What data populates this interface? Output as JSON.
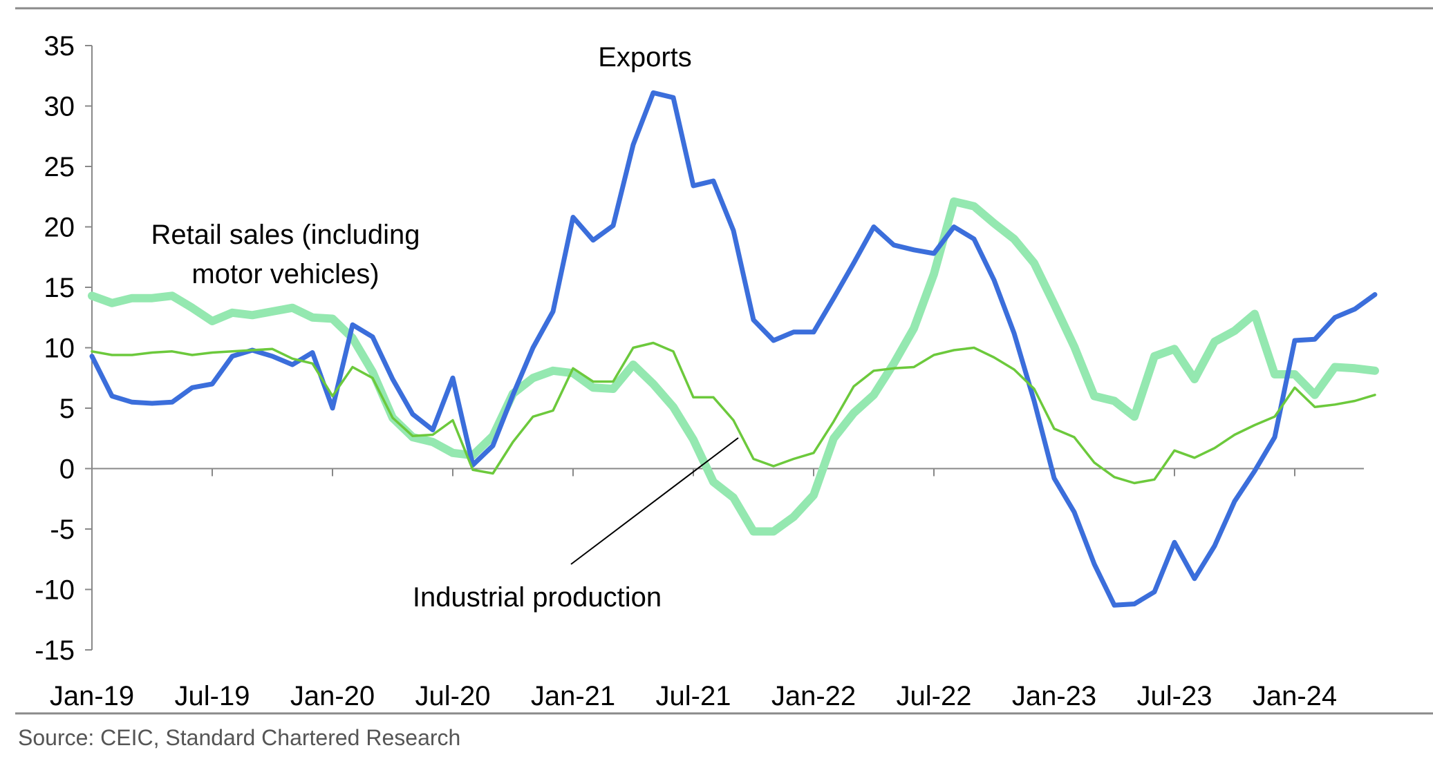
{
  "chart_data": {
    "type": "line",
    "title": "",
    "xlabel": "",
    "ylabel": "",
    "ylim": [
      -15,
      35
    ],
    "yticks": [
      -15,
      -10,
      -5,
      0,
      5,
      10,
      15,
      20,
      25,
      30,
      35
    ],
    "x_tick_labels": [
      "Jan-19",
      "Jul-19",
      "Jan-20",
      "Jul-20",
      "Jan-21",
      "Jul-21",
      "Jan-22",
      "Jul-22",
      "Jan-23",
      "Jul-23",
      "Jan-24"
    ],
    "x": [
      "Jan-19",
      "Feb-19",
      "Mar-19",
      "Apr-19",
      "May-19",
      "Jun-19",
      "Jul-19",
      "Aug-19",
      "Sep-19",
      "Oct-19",
      "Nov-19",
      "Dec-19",
      "Jan-20",
      "Feb-20",
      "Mar-20",
      "Apr-20",
      "May-20",
      "Jun-20",
      "Jul-20",
      "Aug-20",
      "Sep-20",
      "Oct-20",
      "Nov-20",
      "Dec-20",
      "Jan-21",
      "Feb-21",
      "Mar-21",
      "Apr-21",
      "May-21",
      "Jun-21",
      "Jul-21",
      "Aug-21",
      "Sep-21",
      "Oct-21",
      "Nov-21",
      "Dec-21",
      "Jan-22",
      "Feb-22",
      "Mar-22",
      "Apr-22",
      "May-22",
      "Jun-22",
      "Jul-22",
      "Aug-22",
      "Sep-22",
      "Oct-22",
      "Nov-22",
      "Dec-22",
      "Jan-23",
      "Feb-23",
      "Mar-23",
      "Apr-23",
      "May-23",
      "Jun-23",
      "Jul-23",
      "Aug-23",
      "Sep-23",
      "Oct-23",
      "Nov-23",
      "Dec-23",
      "Jan-24",
      "Feb-24",
      "Mar-24",
      "Apr-24",
      "May-24"
    ],
    "series": [
      {
        "name": "Retail sales (including motor vehicles)",
        "color": "#94e8b0",
        "values": [
          14.3,
          13.7,
          14.1,
          14.1,
          14.3,
          13.3,
          12.2,
          12.9,
          12.7,
          13.0,
          13.3,
          12.5,
          12.4,
          10.8,
          8.0,
          4.2,
          2.6,
          2.2,
          1.3,
          1.1,
          2.7,
          6.2,
          7.5,
          8.1,
          7.9,
          6.7,
          6.6,
          8.6,
          7.0,
          5.1,
          2.4,
          -1.1,
          -2.4,
          -5.2,
          -5.2,
          -4.0,
          -2.2,
          2.5,
          4.6,
          6.1,
          8.7,
          11.6,
          16.1,
          22.1,
          21.7,
          20.3,
          19.0,
          17.0,
          13.6,
          10.1,
          6.0,
          5.6,
          4.3,
          9.3,
          9.9,
          7.4,
          10.5,
          11.4,
          12.8,
          7.8,
          7.8,
          6.1,
          8.4,
          8.3,
          8.1
        ]
      },
      {
        "name": "Exports",
        "color": "#3b6edb",
        "values": [
          9.3,
          6.0,
          5.5,
          5.4,
          5.5,
          6.7,
          7.0,
          9.3,
          9.8,
          9.3,
          8.6,
          9.6,
          5.0,
          11.9,
          10.9,
          7.4,
          4.5,
          3.2,
          7.5,
          0.3,
          1.9,
          6.1,
          10.0,
          13.0,
          20.8,
          18.9,
          20.1,
          26.8,
          31.1,
          30.7,
          23.4,
          23.8,
          19.7,
          12.3,
          10.6,
          11.3,
          11.3,
          14.1,
          17.0,
          20.0,
          18.5,
          18.1,
          17.8,
          20.0,
          19.0,
          15.6,
          11.2,
          5.6,
          -0.8,
          -3.6,
          -7.9,
          -11.3,
          -11.2,
          -10.2,
          -6.1,
          -9.1,
          -6.4,
          -2.7,
          -0.2,
          2.6,
          10.6,
          10.7,
          12.5,
          13.2,
          14.4
        ]
      },
      {
        "name": "Industrial production",
        "color": "#6cc93c",
        "values": [
          9.7,
          9.4,
          9.4,
          9.6,
          9.7,
          9.4,
          9.6,
          9.7,
          9.8,
          9.9,
          9.1,
          8.7,
          6.0,
          8.4,
          7.5,
          4.2,
          2.7,
          2.8,
          4.0,
          -0.1,
          -0.4,
          2.2,
          4.3,
          4.8,
          8.3,
          7.2,
          7.2,
          10.0,
          10.4,
          9.7,
          5.9,
          5.9,
          4.0,
          0.8,
          0.2,
          0.8,
          1.3,
          3.9,
          6.8,
          8.1,
          8.3,
          8.4,
          9.4,
          9.8,
          10.0,
          9.2,
          8.2,
          6.6,
          3.3,
          2.6,
          0.5,
          -0.7,
          -1.2,
          -0.9,
          1.5,
          0.9,
          1.7,
          2.8,
          3.6,
          4.3,
          6.7,
          5.1,
          5.3,
          5.6,
          6.1
        ]
      }
    ],
    "annotations": {
      "exports": "Exports",
      "retail_line1": "Retail sales (including",
      "retail_line2": "motor vehicles)",
      "industrial": "Industrial production"
    },
    "grid": false,
    "legend": "none (inline labels)"
  },
  "source": "Source: CEIC, Standard Chartered Research"
}
